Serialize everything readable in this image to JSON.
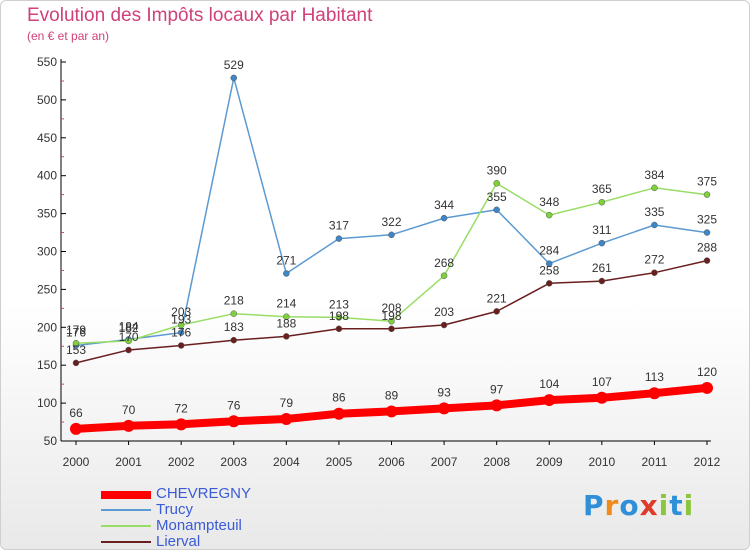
{
  "header": {
    "title": "Evolution des Impôts locaux par Habitant",
    "subtitle": "(en € et par an)"
  },
  "logo": {
    "text": "Proxiti",
    "colors": [
      "#2f8fd8",
      "#f08a1c",
      "#2f8fd8",
      "#e03a2a",
      "#8cc63f",
      "#2f8fd8",
      "#8cc63f"
    ]
  },
  "chart_data": {
    "type": "line",
    "x": [
      "2000",
      "2001",
      "2002",
      "2003",
      "2004",
      "2005",
      "2006",
      "2007",
      "2008",
      "2009",
      "2010",
      "2011",
      "2012"
    ],
    "ylim": [
      50,
      550
    ],
    "yticks": [
      50,
      100,
      150,
      200,
      250,
      300,
      350,
      400,
      450,
      500,
      550
    ],
    "grid": false,
    "legend": "bottom-left",
    "series": [
      {
        "name": "Trucy",
        "color": "#5c9ad1",
        "values": [
          176,
          184,
          193,
          529,
          271,
          317,
          322,
          344,
          355,
          284,
          311,
          335,
          325
        ]
      },
      {
        "name": "Monampteuil",
        "color": "#99dd66",
        "values": [
          179,
          182,
          203,
          218,
          214,
          213,
          208,
          268,
          390,
          348,
          365,
          384,
          375
        ]
      },
      {
        "name": "Lierval",
        "color": "#6a1f1f",
        "values": [
          153,
          170,
          176,
          183,
          188,
          198,
          198,
          203,
          221,
          258,
          261,
          272,
          288
        ]
      },
      {
        "name": "CHEVREGNY",
        "color": "#ff0000",
        "values": [
          66,
          70,
          72,
          76,
          79,
          86,
          89,
          93,
          97,
          104,
          107,
          113,
          120
        ]
      }
    ]
  }
}
